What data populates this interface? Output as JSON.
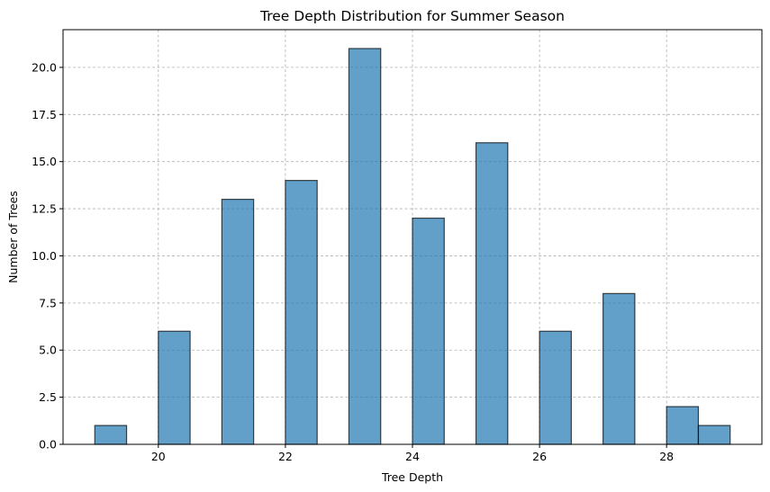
{
  "chart_data": {
    "type": "bar",
    "title": "Tree Depth Distribution for Summer Season",
    "xlabel": "Tree Depth",
    "ylabel": "Number of Trees",
    "xlim": [
      18.5,
      29.5
    ],
    "ylim": [
      0,
      22
    ],
    "xticks": [
      20,
      22,
      24,
      26,
      28
    ],
    "xtick_labels": [
      "20",
      "22",
      "24",
      "26",
      "28"
    ],
    "yticks": [
      0,
      2.5,
      5,
      7.5,
      10,
      12.5,
      15,
      17.5,
      20
    ],
    "ytick_labels": [
      "0.0",
      "2.5",
      "5.0",
      "7.5",
      "10.0",
      "12.5",
      "15.0",
      "17.5",
      "20.0"
    ],
    "bin_width": 0.5,
    "bins": [
      {
        "x0": 19.0,
        "count": 1
      },
      {
        "x0": 20.0,
        "count": 6
      },
      {
        "x0": 21.0,
        "count": 13
      },
      {
        "x0": 22.0,
        "count": 14
      },
      {
        "x0": 23.0,
        "count": 21
      },
      {
        "x0": 24.0,
        "count": 12
      },
      {
        "x0": 25.0,
        "count": 16
      },
      {
        "x0": 26.0,
        "count": 6
      },
      {
        "x0": 27.0,
        "count": 8
      },
      {
        "x0": 28.0,
        "count": 2
      },
      {
        "x0": 28.5,
        "count": 1
      }
    ],
    "grid": true,
    "color": "#1f77b4"
  }
}
